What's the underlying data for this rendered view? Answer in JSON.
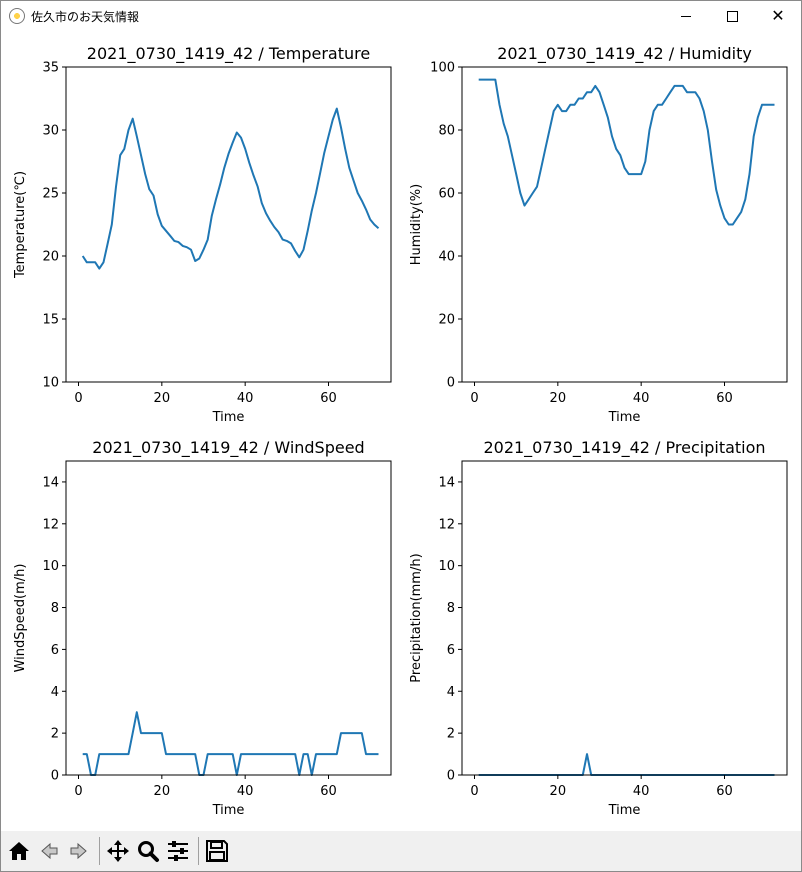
{
  "window": {
    "title": "佐久市のお天気情報",
    "icon": "sun-icon"
  },
  "colors": {
    "line": "#1f77b4",
    "axis": "#000000"
  },
  "chart_data": [
    {
      "type": "line",
      "title": "2021_0730_1419_42 / Temperature",
      "xlabel": "Time",
      "ylabel": "Temperature(℃)",
      "xlim": [
        -3,
        75
      ],
      "ylim": [
        10,
        35
      ],
      "xticks": [
        0,
        20,
        40,
        60
      ],
      "yticks": [
        10,
        15,
        20,
        25,
        30,
        35
      ],
      "x": [
        1,
        2,
        3,
        4,
        5,
        6,
        7,
        8,
        9,
        10,
        11,
        12,
        13,
        14,
        15,
        16,
        17,
        18,
        19,
        20,
        21,
        22,
        23,
        24,
        25,
        26,
        27,
        28,
        29,
        30,
        31,
        32,
        33,
        34,
        35,
        36,
        37,
        38,
        39,
        40,
        41,
        42,
        43,
        44,
        45,
        46,
        47,
        48,
        49,
        50,
        51,
        52,
        53,
        54,
        55,
        56,
        57,
        58,
        59,
        60,
        61,
        62,
        63,
        64,
        65,
        66,
        67,
        68,
        69,
        70,
        71,
        72
      ],
      "series": [
        {
          "values": [
            20.0,
            19.5,
            19.5,
            19.5,
            19.0,
            19.5,
            21.0,
            22.5,
            25.5,
            28.0,
            28.5,
            30.0,
            30.9,
            29.5,
            28.0,
            26.5,
            25.3,
            24.8,
            23.3,
            22.4,
            22.0,
            21.6,
            21.2,
            21.1,
            20.8,
            20.7,
            20.5,
            19.6,
            19.8,
            20.5,
            21.3,
            23.2,
            24.5,
            25.7,
            27.0,
            28.1,
            29.0,
            29.8,
            29.4,
            28.5,
            27.4,
            26.4,
            25.5,
            24.2,
            23.4,
            22.8,
            22.3,
            21.9,
            21.3,
            21.2,
            21.0,
            20.4,
            19.9,
            20.5,
            22.0,
            23.6,
            25.0,
            26.6,
            28.2,
            29.5,
            30.8,
            31.7,
            30.2,
            28.5,
            27.0,
            26.0,
            25.0,
            24.4,
            23.7,
            22.9,
            22.5,
            22.2
          ]
        }
      ]
    },
    {
      "type": "line",
      "title": "2021_0730_1419_42 / Humidity",
      "xlabel": "Time",
      "ylabel": "Humidity(%)",
      "xlim": [
        -3,
        75
      ],
      "ylim": [
        0,
        100
      ],
      "xticks": [
        0,
        20,
        40,
        60
      ],
      "yticks": [
        0,
        20,
        40,
        60,
        80,
        100
      ],
      "x": [
        1,
        2,
        3,
        4,
        5,
        6,
        7,
        8,
        9,
        10,
        11,
        12,
        13,
        14,
        15,
        16,
        17,
        18,
        19,
        20,
        21,
        22,
        23,
        24,
        25,
        26,
        27,
        28,
        29,
        30,
        31,
        32,
        33,
        34,
        35,
        36,
        37,
        38,
        39,
        40,
        41,
        42,
        43,
        44,
        45,
        46,
        47,
        48,
        49,
        50,
        51,
        52,
        53,
        54,
        55,
        56,
        57,
        58,
        59,
        60,
        61,
        62,
        63,
        64,
        65,
        66,
        67,
        68,
        69,
        70,
        71,
        72
      ],
      "series": [
        {
          "values": [
            96,
            96,
            96,
            96,
            96,
            88,
            82,
            78,
            72,
            66,
            60,
            56,
            58,
            60,
            62,
            68,
            74,
            80,
            86,
            88,
            86,
            86,
            88,
            88,
            90,
            90,
            92,
            92,
            94,
            92,
            88,
            84,
            78,
            74,
            72,
            68,
            66,
            66,
            66,
            66,
            70,
            80,
            86,
            88,
            88,
            90,
            92,
            94,
            94,
            94,
            92,
            92,
            92,
            90,
            86,
            80,
            70,
            61,
            56,
            52,
            50,
            50,
            52,
            54,
            58,
            66,
            78,
            84,
            88,
            88,
            88,
            88
          ]
        }
      ]
    },
    {
      "type": "line",
      "title": "2021_0730_1419_42 / WindSpeed",
      "xlabel": "Time",
      "ylabel": "WindSpeed(m/h)",
      "xlim": [
        -3,
        75
      ],
      "ylim": [
        0,
        15
      ],
      "xticks": [
        0,
        20,
        40,
        60
      ],
      "yticks": [
        0,
        2,
        4,
        6,
        8,
        10,
        12,
        14
      ],
      "x": [
        1,
        2,
        3,
        4,
        5,
        6,
        7,
        8,
        9,
        10,
        11,
        12,
        13,
        14,
        15,
        16,
        17,
        18,
        19,
        20,
        21,
        22,
        23,
        24,
        25,
        26,
        27,
        28,
        29,
        30,
        31,
        32,
        33,
        34,
        35,
        36,
        37,
        38,
        39,
        40,
        41,
        42,
        43,
        44,
        45,
        46,
        47,
        48,
        49,
        50,
        51,
        52,
        53,
        54,
        55,
        56,
        57,
        58,
        59,
        60,
        61,
        62,
        63,
        64,
        65,
        66,
        67,
        68,
        69,
        70,
        71,
        72
      ],
      "series": [
        {
          "values": [
            1,
            1,
            0,
            0,
            1,
            1,
            1,
            1,
            1,
            1,
            1,
            1,
            2,
            3,
            2,
            2,
            2,
            2,
            2,
            2,
            1,
            1,
            1,
            1,
            1,
            1,
            1,
            1,
            0,
            0,
            1,
            1,
            1,
            1,
            1,
            1,
            1,
            0,
            1,
            1,
            1,
            1,
            1,
            1,
            1,
            1,
            1,
            1,
            1,
            1,
            1,
            1,
            0,
            1,
            1,
            0,
            1,
            1,
            1,
            1,
            1,
            1,
            2,
            2,
            2,
            2,
            2,
            2,
            1,
            1,
            1,
            1
          ]
        }
      ]
    },
    {
      "type": "line",
      "title": "2021_0730_1419_42 / Precipitation",
      "xlabel": "Time",
      "ylabel": "Precipitation(mm/h)",
      "xlim": [
        -3,
        75
      ],
      "ylim": [
        0,
        15
      ],
      "xticks": [
        0,
        20,
        40,
        60
      ],
      "yticks": [
        0,
        2,
        4,
        6,
        8,
        10,
        12,
        14
      ],
      "x": [
        1,
        2,
        3,
        4,
        5,
        6,
        7,
        8,
        9,
        10,
        11,
        12,
        13,
        14,
        15,
        16,
        17,
        18,
        19,
        20,
        21,
        22,
        23,
        24,
        25,
        26,
        27,
        28,
        29,
        30,
        31,
        32,
        33,
        34,
        35,
        36,
        37,
        38,
        39,
        40,
        41,
        42,
        43,
        44,
        45,
        46,
        47,
        48,
        49,
        50,
        51,
        52,
        53,
        54,
        55,
        56,
        57,
        58,
        59,
        60,
        61,
        62,
        63,
        64,
        65,
        66,
        67,
        68,
        69,
        70,
        71,
        72
      ],
      "series": [
        {
          "values": [
            0,
            0,
            0,
            0,
            0,
            0,
            0,
            0,
            0,
            0,
            0,
            0,
            0,
            0,
            0,
            0,
            0,
            0,
            0,
            0,
            0,
            0,
            0,
            0,
            0,
            0,
            1,
            0,
            0,
            0,
            0,
            0,
            0,
            0,
            0,
            0,
            0,
            0,
            0,
            0,
            0,
            0,
            0,
            0,
            0,
            0,
            0,
            0,
            0,
            0,
            0,
            0,
            0,
            0,
            0,
            0,
            0,
            0,
            0,
            0,
            0,
            0,
            0,
            0,
            0,
            0,
            0,
            0,
            0,
            0,
            0,
            0
          ]
        }
      ]
    }
  ],
  "toolbar": {
    "buttons": [
      {
        "name": "home-button",
        "icon": "home-icon"
      },
      {
        "name": "back-button",
        "icon": "back-arrow-icon"
      },
      {
        "name": "forward-button",
        "icon": "forward-arrow-icon"
      },
      {
        "name": "pan-button",
        "icon": "move-icon"
      },
      {
        "name": "zoom-button",
        "icon": "magnifier-icon"
      },
      {
        "name": "configure-subplots-button",
        "icon": "sliders-icon"
      },
      {
        "name": "save-button",
        "icon": "floppy-disk-icon"
      }
    ]
  }
}
